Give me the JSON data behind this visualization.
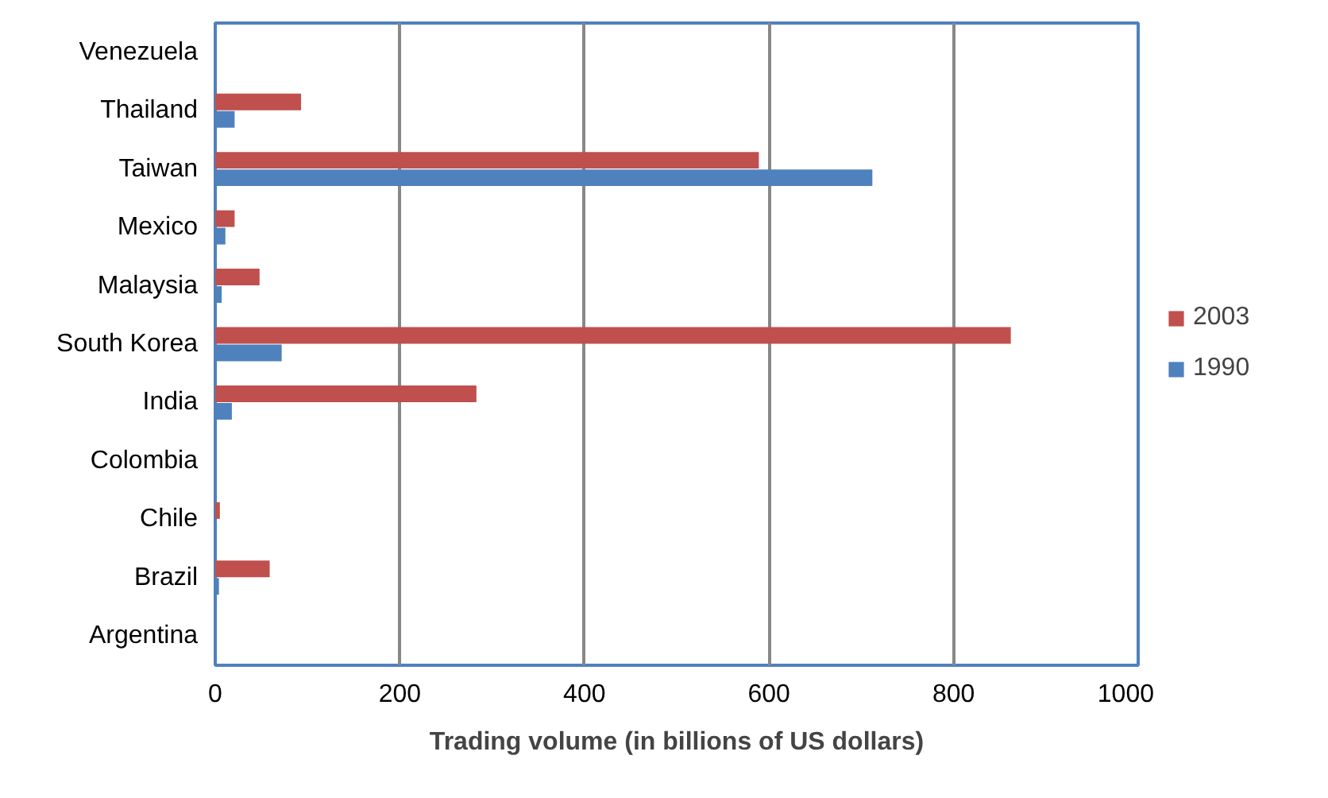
{
  "chart_data": {
    "type": "bar",
    "orientation": "horizontal",
    "categories": [
      "Venezuela",
      "Thailand",
      "Taiwan",
      "Mexico",
      "Malaysia",
      "South Korea",
      "India",
      "Colombia",
      "Chile",
      "Brazil",
      "Argentina"
    ],
    "series": [
      {
        "name": "2003",
        "color": "#c0504d",
        "values": [
          0,
          93,
          589,
          21,
          48,
          862,
          283,
          0,
          5,
          59,
          0
        ]
      },
      {
        "name": "1990",
        "color": "#4f81bd",
        "values": [
          0,
          21,
          712,
          11,
          7,
          72,
          18,
          0,
          0,
          4,
          0
        ]
      }
    ],
    "xlabel": "Trading volume (in billions of US dollars)",
    "xlim": [
      0,
      1000
    ],
    "xticks": [
      0,
      200,
      400,
      600,
      800,
      1000
    ],
    "grid": "x",
    "legend": "right"
  }
}
